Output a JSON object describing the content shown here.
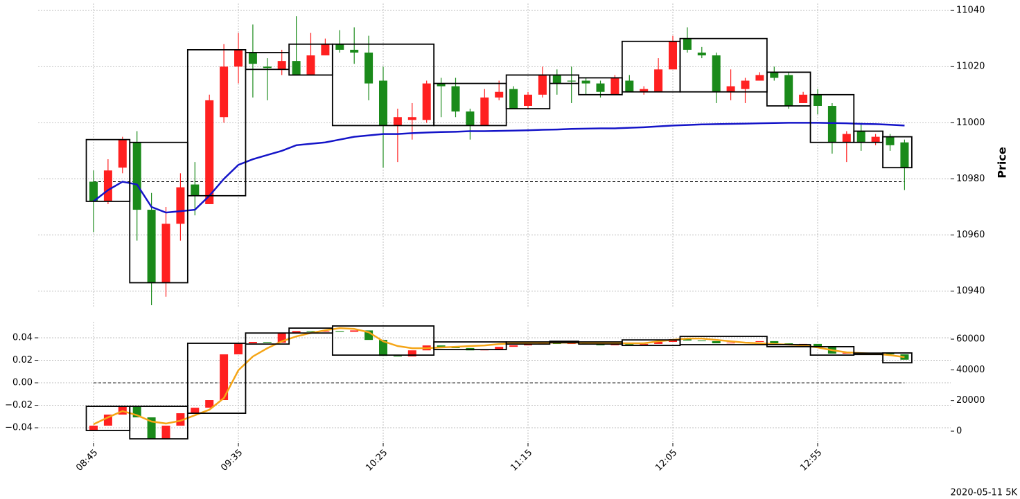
{
  "chart_data": [
    {
      "type": "candlestick",
      "ylabel": "Price",
      "up_color": "#ff2020",
      "down_color": "#1a8a1a",
      "box_color": "#000000",
      "candles": {
        "open": [
          10979,
          10972,
          10984,
          10993,
          10969,
          10943,
          10964,
          10978,
          10971,
          11002,
          11020,
          11025,
          11020,
          11019,
          11022,
          11017,
          11024,
          11028,
          11026,
          11025,
          11015,
          10999,
          11001,
          11001,
          11014,
          11013,
          11004,
          10999,
          11009,
          11012,
          11006,
          11010,
          11017,
          11015,
          11015,
          11014,
          11010,
          11015,
          11011,
          11011,
          11019,
          11030,
          11025,
          11024,
          11011,
          11012,
          11015,
          11018,
          11017,
          11007,
          11010,
          11006,
          10993,
          10997,
          10993,
          10995,
          10993
        ],
        "high": [
          10983,
          10987,
          10995,
          10997,
          10975,
          10970,
          10982,
          10986,
          11010,
          11028,
          11032,
          11035,
          11023,
          11026,
          11038,
          11032,
          11030,
          11033,
          11034,
          11031,
          11020,
          11005,
          11007,
          11015,
          11016,
          11016,
          11005,
          11012,
          11015,
          11013,
          11011,
          11020,
          11019,
          11020,
          11016,
          11015,
          11017,
          11017,
          11013,
          11023,
          11031,
          11034,
          11027,
          11025,
          11019,
          11016,
          11018,
          11020,
          11018,
          11011,
          11012,
          11007,
          10997,
          11000,
          10996,
          10996,
          10994
        ],
        "low": [
          10961,
          10971,
          10982,
          10958,
          10935,
          10938,
          10958,
          10967,
          10971,
          11000,
          11014,
          11009,
          11008,
          11017,
          11017,
          11017,
          11024,
          11025,
          11021,
          11008,
          10984,
          10986,
          10994,
          11000,
          11002,
          11002,
          10994,
          10999,
          11008,
          11005,
          11005,
          11009,
          11010,
          11007,
          11010,
          11009,
          11010,
          11011,
          11010,
          11011,
          11019,
          11025,
          11023,
          11007,
          11008,
          11007,
          11015,
          11015,
          11005,
          11007,
          11003,
          10989,
          10986,
          10990,
          10992,
          10990,
          10976
        ],
        "close": [
          10972,
          10983,
          10994,
          10969,
          10943,
          10964,
          10977,
          10974,
          11008,
          11020,
          11026,
          11021,
          11019.5,
          11022,
          11017,
          11024,
          11028,
          11026,
          11025,
          11014,
          10999,
          11002,
          11002,
          11014,
          11013,
          11004,
          10999,
          11009,
          11011,
          11005,
          11010,
          11017,
          11014,
          11014.7,
          11014,
          11011,
          11016,
          11011,
          11012,
          11019,
          11029,
          11026,
          11024,
          11011,
          11013,
          11015,
          11017,
          11016,
          11006,
          11010,
          11006,
          10993,
          10996,
          10993,
          10995,
          10992,
          10984
        ]
      },
      "boxes": [
        {
          "start": 0,
          "end": 2,
          "high": 10994,
          "low": 10972
        },
        {
          "start": 3,
          "end": 6,
          "high": 10993,
          "low": 10943
        },
        {
          "start": 7,
          "end": 10,
          "high": 11026,
          "low": 10974
        },
        {
          "start": 11,
          "end": 13,
          "high": 11025,
          "low": 11019
        },
        {
          "start": 14,
          "end": 16,
          "high": 11028,
          "low": 11017
        },
        {
          "start": 17,
          "end": 23,
          "high": 11028,
          "low": 10999
        },
        {
          "start": 24,
          "end": 28,
          "high": 11014,
          "low": 10999
        },
        {
          "start": 29,
          "end": 31,
          "high": 11017,
          "low": 11005
        },
        {
          "start": 32,
          "end": 33,
          "high": 11017,
          "low": 11014
        },
        {
          "start": 34,
          "end": 36,
          "high": 11016,
          "low": 11010
        },
        {
          "start": 37,
          "end": 40,
          "high": 11029,
          "low": 11011
        },
        {
          "start": 41,
          "end": 46,
          "high": 11030,
          "low": 11011
        },
        {
          "start": 47,
          "end": 49,
          "high": 11018,
          "low": 11006
        },
        {
          "start": 50,
          "end": 52,
          "high": 11010,
          "low": 10993
        },
        {
          "start": 53,
          "end": 54,
          "high": 10997,
          "low": 10993
        },
        {
          "start": 55,
          "end": 56,
          "high": 10995,
          "low": 10984
        }
      ],
      "lines": [
        {
          "color": "#1414c8",
          "values": [
            10972,
            10976,
            10979,
            10978,
            10970,
            10968,
            10968.5,
            10969,
            10974,
            10980,
            10985,
            10987,
            10988.5,
            10990,
            10992,
            10992.5,
            10993,
            10994,
            10995,
            10995.5,
            10996,
            10996,
            10996.3,
            10996.5,
            10996.7,
            10996.8,
            10997,
            10997,
            10997.1,
            10997.2,
            10997.3,
            10997.5,
            10997.6,
            10997.8,
            10997.9,
            10998,
            10998,
            10998.2,
            10998.4,
            10998.7,
            10999,
            10999.2,
            10999.4,
            10999.5,
            10999.6,
            10999.7,
            10999.8,
            10999.9,
            11000,
            11000,
            11000,
            10999.9,
            10999.8,
            10999.6,
            10999.5,
            10999.3,
            10999
          ]
        }
      ],
      "reference_line": 10979,
      "ylim": [
        10934,
        11042.5
      ],
      "yticks": [
        10940,
        10960,
        10980,
        11000,
        11020,
        11040
      ],
      "grid": true
    },
    {
      "type": "candlestick",
      "annotation": "2020-05-11 5K",
      "up_color": "#ff2020",
      "down_color": "#1a8a1a",
      "box_color": "#000000",
      "categories": [
        "08:45",
        null,
        null,
        null,
        null,
        null,
        null,
        null,
        null,
        null,
        "09:35",
        null,
        null,
        null,
        null,
        null,
        null,
        null,
        null,
        null,
        "10:25",
        null,
        null,
        null,
        null,
        null,
        null,
        null,
        null,
        null,
        "11:15",
        null,
        null,
        null,
        null,
        null,
        null,
        null,
        null,
        null,
        "12:05",
        null,
        null,
        null,
        null,
        null,
        null,
        null,
        null,
        null,
        "12:55",
        null,
        null,
        null,
        null,
        null,
        null
      ],
      "candles": {
        "axis": "y2",
        "open": [
          450,
          3600,
          10800,
          15800,
          9000,
          -5000,
          3600,
          11700,
          15300,
          20300,
          50100,
          57300,
          58200,
          57700,
          64000,
          65300,
          64800,
          65300,
          64800,
          65700,
          59500,
          49100,
          48700,
          52700,
          55900,
          54600,
          54200,
          52700,
          53300,
          55000,
          56000,
          56400,
          57300,
          56900,
          57300,
          56900,
          56000,
          57300,
          56400,
          56900,
          58200,
          60000,
          59100,
          58700,
          57300,
          57700,
          58200,
          58700,
          57300,
          56400,
          56900,
          55100,
          50600,
          51100,
          50600,
          50900,
          50100
        ],
        "close": [
          3600,
          10800,
          15800,
          9000,
          -5000,
          3600,
          11700,
          15300,
          20300,
          50100,
          57300,
          58200,
          57700,
          64000,
          65300,
          64800,
          65300,
          64800,
          65700,
          59500,
          49100,
          48700,
          52700,
          55900,
          54600,
          54200,
          52700,
          53300,
          55000,
          56000,
          56400,
          57300,
          56900,
          57300,
          56900,
          56000,
          57300,
          56400,
          56900,
          58200,
          60000,
          59100,
          58700,
          57300,
          57700,
          58200,
          58700,
          57300,
          56400,
          56900,
          55100,
          50600,
          51100,
          50600,
          50900,
          50100,
          46600
        ]
      },
      "boxes": [
        {
          "start": 0,
          "end": 2,
          "high": 16200,
          "low": 450
        },
        {
          "start": 3,
          "end": 6,
          "high": 16200,
          "low": -5000
        },
        {
          "start": 7,
          "end": 10,
          "high": 57300,
          "low": 11700
        },
        {
          "start": 11,
          "end": 13,
          "high": 64000,
          "low": 56800
        },
        {
          "start": 14,
          "end": 16,
          "high": 67200,
          "low": 64000
        },
        {
          "start": 17,
          "end": 23,
          "high": 68600,
          "low": 49600
        },
        {
          "start": 24,
          "end": 28,
          "high": 58200,
          "low": 53200
        },
        {
          "start": 29,
          "end": 31,
          "high": 58200,
          "low": 56800
        },
        {
          "start": 32,
          "end": 33,
          "high": 58600,
          "low": 57700
        },
        {
          "start": 34,
          "end": 36,
          "high": 58200,
          "low": 56800
        },
        {
          "start": 37,
          "end": 40,
          "high": 59500,
          "low": 55900
        },
        {
          "start": 41,
          "end": 46,
          "high": 61800,
          "low": 56400
        },
        {
          "start": 47,
          "end": 49,
          "high": 56400,
          "low": 55100
        },
        {
          "start": 50,
          "end": 52,
          "high": 55100,
          "low": 49600
        },
        {
          "start": 53,
          "end": 54,
          "high": 50900,
          "low": 50000
        },
        {
          "start": 55,
          "end": 56,
          "high": 51000,
          "low": 44600
        }
      ],
      "lines": [
        {
          "color": "#f5a516",
          "axis": "y2",
          "values": [
            4500,
            9000,
            13100,
            10400,
            6300,
            5000,
            6800,
            10400,
            14000,
            21600,
            39700,
            48700,
            54100,
            58600,
            61800,
            64000,
            65800,
            67200,
            66700,
            64500,
            58600,
            55500,
            54100,
            54100,
            54600,
            55000,
            55500,
            55900,
            56800,
            57300,
            57700,
            57700,
            57700,
            57700,
            57700,
            57300,
            57300,
            57300,
            57300,
            58600,
            59500,
            60400,
            60400,
            59500,
            58600,
            57700,
            57300,
            56800,
            56400,
            55900,
            54600,
            52800,
            51400,
            50900,
            50500,
            49600,
            48300
          ]
        }
      ],
      "reference_line": 0,
      "ylim": [
        -0.0535,
        0.0542
      ],
      "yticks": [
        {
          "value": -0.04,
          "label": "−0.04"
        },
        {
          "value": -0.02,
          "label": "−0.02"
        },
        {
          "value": 0,
          "label": "0.00"
        },
        {
          "value": 0.02,
          "label": "0.02"
        },
        {
          "value": 0.04,
          "label": "0.04"
        }
      ],
      "y2lim": [
        -7670,
        71300
      ],
      "y2ticks": [
        0,
        20000,
        40000,
        60000
      ],
      "grid": true
    }
  ]
}
